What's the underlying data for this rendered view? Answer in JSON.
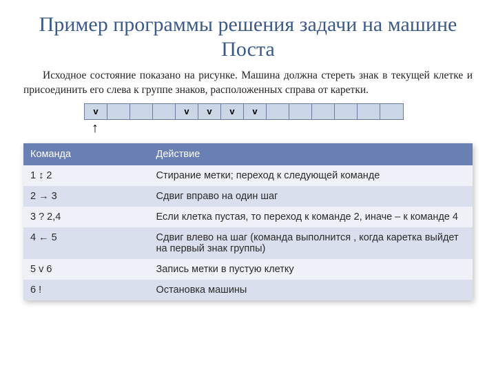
{
  "title_color": "#3b5a8a",
  "title": "Пример программы решения задачи на машине Поста",
  "description": "Исходное состояние показано на рисунке. Машина должна стереть знак в текущей клетке и присоединить его слева к группе знаков, расположенных справа от каретки.",
  "tape": {
    "cell_background": "#cbd7e7",
    "cell_border": "#6a7a9c",
    "mark_glyph": "v",
    "num_cells": 14,
    "marks_at": [
      0,
      4,
      5,
      6,
      7
    ],
    "pointer_index": 0,
    "pointer_glyph": "↑"
  },
  "table": {
    "header_bg": "#6a7fb3",
    "header_text_color": "#ffffff",
    "row_even_bg": "#eef1f7",
    "row_odd_bg": "#d9dfec",
    "columns": [
      "Команда",
      "Действие"
    ],
    "rows": [
      [
        "1 ↕ 2",
        "Стирание метки; переход к следующей команде"
      ],
      [
        "2 → 3",
        "Сдвиг вправо на один шаг"
      ],
      [
        "3 ? 2,4",
        "Если клетка пустая, то переход к команде 2, иначе – к команде 4"
      ],
      [
        "4 ← 5",
        "Сдвиг влево на шаг (команда выполнится , когда каретка выйдет на первый знак группы)"
      ],
      [
        "5 v 6",
        "Запись метки в пустую клетку"
      ],
      [
        "6 !",
        "Остановка машины"
      ]
    ]
  }
}
